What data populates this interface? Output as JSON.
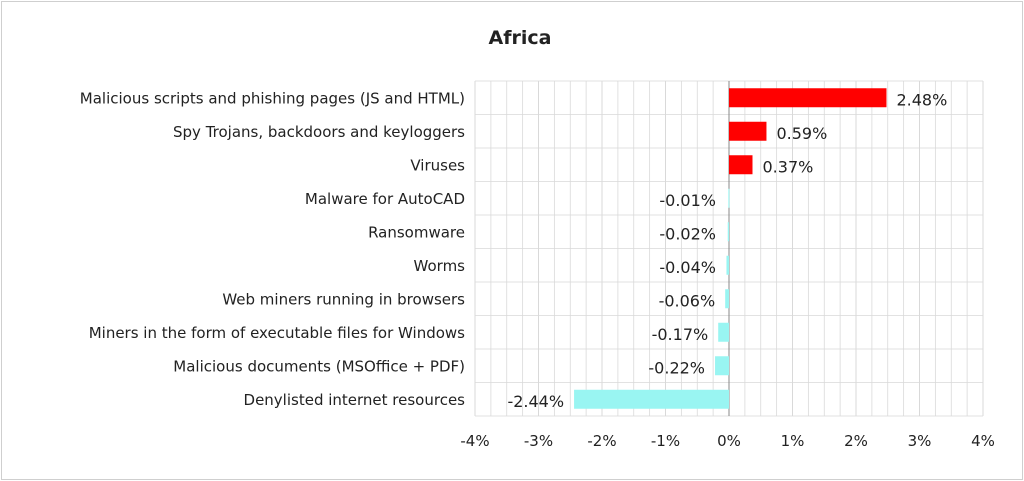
{
  "chart_data": {
    "type": "bar",
    "orientation": "horizontal",
    "title": "Africa",
    "categories": [
      "Malicious scripts and phishing pages (JS and HTML)",
      "Spy Trojans, backdoors and keyloggers",
      "Viruses",
      "Malware for AutoCAD",
      "Ransomware",
      "Worms",
      "Web miners running in browsers",
      "Miners in the form of executable files for Windows",
      "Malicious documents (MSOffice + PDF)",
      "Denylisted internet resources"
    ],
    "values": [
      2.48,
      0.59,
      0.37,
      -0.01,
      -0.02,
      -0.04,
      -0.06,
      -0.17,
      -0.22,
      -2.44
    ],
    "data_labels": [
      "2.48%",
      "0.59%",
      "0.37%",
      "-0.01%",
      "-0.02%",
      "-0.04%",
      "-0.06%",
      "-0.17%",
      "-0.22%",
      "-2.44%"
    ],
    "xlim": [
      -4,
      4
    ],
    "x_ticks": [
      "-4%",
      "-3%",
      "-2%",
      "-1%",
      "0%",
      "1%",
      "2%",
      "3%",
      "4%"
    ],
    "x_tick_values": [
      -4,
      -3,
      -2,
      -1,
      0,
      1,
      2,
      3,
      4
    ],
    "grid": true,
    "colors": {
      "positive": "#ff0000",
      "negative": "#99f5f2",
      "grid": "#d9d9d9",
      "axis": "#888888"
    }
  }
}
